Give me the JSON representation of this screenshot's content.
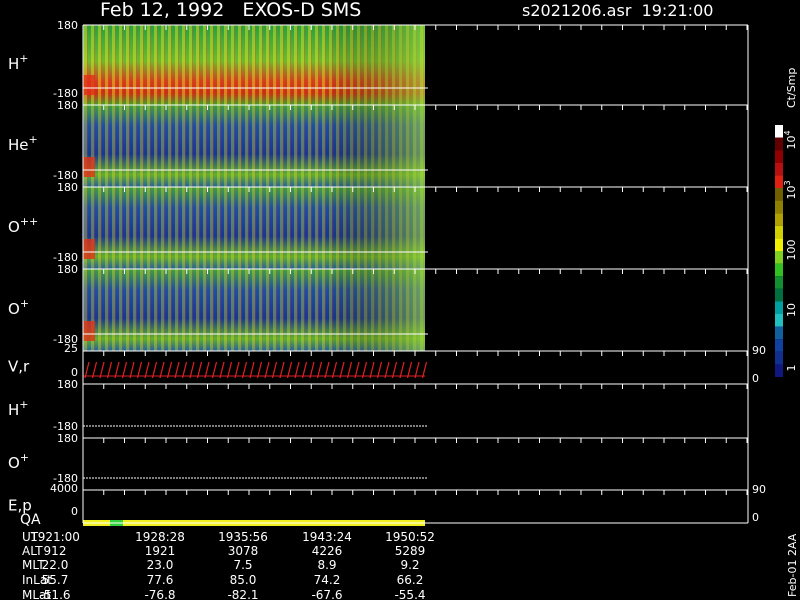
{
  "header": {
    "title": "Feb 12, 1992   EXOS-D SMS",
    "file": "s2021206.asr  19:21:00"
  },
  "panels": [
    {
      "label": "H",
      "sup": "+",
      "ticks": [
        "180",
        "-180"
      ]
    },
    {
      "label": "He",
      "sup": "+",
      "ticks": [
        "180",
        "-180"
      ]
    },
    {
      "label": "O",
      "sup": "++",
      "ticks": [
        "180",
        "-180"
      ]
    },
    {
      "label": "O",
      "sup": "+",
      "ticks": [
        "180",
        "-180"
      ]
    },
    {
      "label": "V,r",
      "ticks": [
        "25",
        "0"
      ],
      "right_ticks": [
        "90",
        "0"
      ]
    },
    {
      "label": "H",
      "sup": "+",
      "ticks": [
        "180",
        "-180"
      ]
    },
    {
      "label": "O",
      "sup": "+",
      "ticks": [
        "180",
        "-180"
      ]
    },
    {
      "label": "E,p",
      "ticks": [
        "4000",
        "0"
      ],
      "right_ticks": [
        "90",
        "0"
      ]
    }
  ],
  "qa": {
    "label": "QA"
  },
  "colorbar": {
    "unit": "Ct/Smp",
    "labels": [
      {
        "base": "10",
        "sup": "4"
      },
      {
        "base": "10",
        "sup": "3"
      },
      {
        "base": "100"
      },
      {
        "base": "10"
      },
      {
        "base": "1"
      }
    ]
  },
  "table": {
    "rows": [
      [
        "UT",
        "1921:00",
        "1928:28",
        "1935:56",
        "1943:24",
        "1950:52"
      ],
      [
        "ALT",
        "912",
        "1921",
        "3078",
        "4226",
        "5289"
      ],
      [
        "MLT",
        "22.0",
        "23.0",
        "7.5",
        "8.9",
        "9.2"
      ],
      [
        "InLat",
        "55.7",
        "77.6",
        "85.0",
        "74.2",
        "66.2"
      ],
      [
        "MLat",
        "-51.6",
        "-76.8",
        "-82.1",
        "-67.6",
        "-55.4"
      ]
    ]
  },
  "footer": "Feb-01 2AA"
}
